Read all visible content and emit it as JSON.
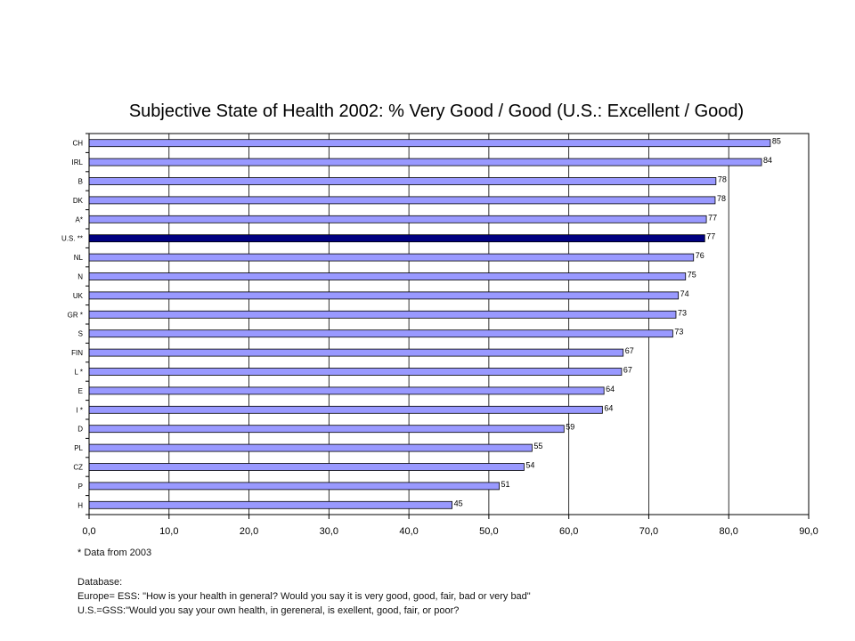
{
  "chart_data": {
    "type": "bar",
    "orientation": "horizontal",
    "title": "Subjective State of Health 2002: % Very Good / Good (U.S.: Excellent / Good)",
    "xlabel": "",
    "ylabel": "",
    "xlim": [
      0,
      90
    ],
    "xticks": [
      "0,0",
      "10,0",
      "20,0",
      "30,0",
      "40,0",
      "50,0",
      "60,0",
      "70,0",
      "80,0",
      "90,0"
    ],
    "grid": true,
    "categories": [
      "CH",
      "IRL",
      "B",
      "DK",
      "A*",
      "U.S. **",
      "NL",
      "N",
      "UK",
      "GR *",
      "S",
      "FIN",
      "L *",
      "E",
      "I *",
      "D",
      "PL",
      "CZ",
      "P",
      "H"
    ],
    "values": [
      85.2,
      84.1,
      78.4,
      78.3,
      77.2,
      77.0,
      75.6,
      74.6,
      73.7,
      73.4,
      73.0,
      66.8,
      66.6,
      64.4,
      64.2,
      59.4,
      55.4,
      54.4,
      51.3,
      45.4
    ],
    "value_labels": [
      "85",
      "84",
      "78",
      "78",
      "77",
      "77",
      "76",
      "75",
      "74",
      "73",
      "73",
      "67",
      "67",
      "64",
      "64",
      "59",
      "55",
      "54",
      "51",
      "45"
    ],
    "highlight": "U.S. **",
    "colors": {
      "bar": "#9999ff",
      "highlight": "#000080",
      "border": "#000000",
      "grid": "#000000"
    }
  },
  "notes": {
    "footnote": "*  Data from 2003",
    "database_heading": "Database:",
    "database_europe": "Europe= ESS: \"How is your health in general? Would you say it is very good, good, fair, bad or very bad\"",
    "database_us": "U.S.=GSS:\"Would you say your own health, in gereneral,  is exellent, good, fair, or poor?"
  }
}
